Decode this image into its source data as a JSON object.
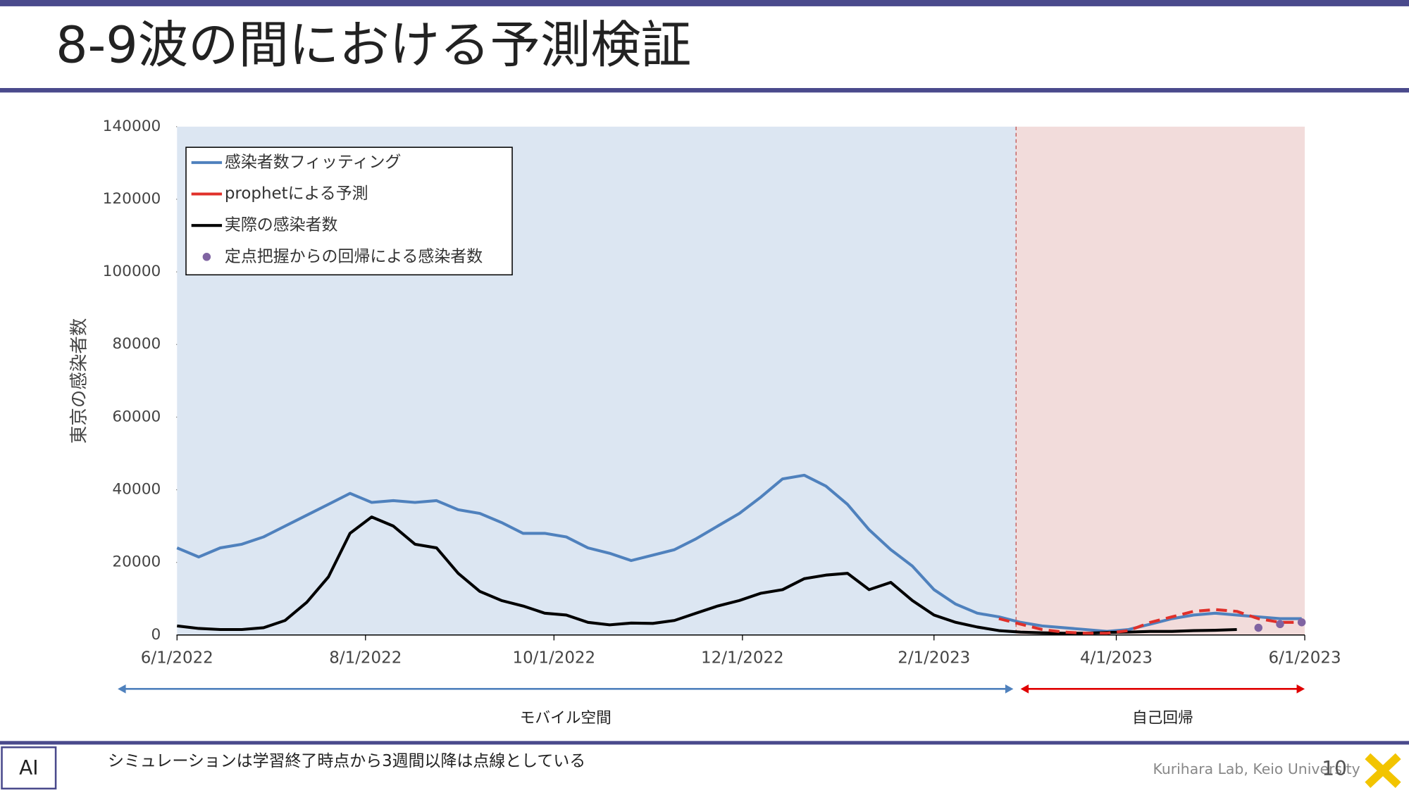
{
  "slide": {
    "title": "8-9波の間における予測検証",
    "note": "シミュレーションは学習終了時点から3週間以降は点線としている",
    "lab": "Kurihara Lab, Keio University",
    "page": "10"
  },
  "chart_data": {
    "type": "line",
    "ylabel": "東京の感染者数",
    "annotations": [
      "モバイル空間",
      "自己回帰"
    ],
    "x": [
      "6/1/2022",
      "6/8/2022",
      "6/15/2022",
      "6/22/2022",
      "6/29/2022",
      "7/6/2022",
      "7/13/2022",
      "7/20/2022",
      "7/27/2022",
      "8/3/2022",
      "8/10/2022",
      "8/17/2022",
      "8/24/2022",
      "8/31/2022",
      "9/7/2022",
      "9/14/2022",
      "9/21/2022",
      "9/28/2022",
      "10/5/2022",
      "10/12/2022",
      "10/19/2022",
      "10/26/2022",
      "11/2/2022",
      "11/9/2022",
      "11/16/2022",
      "11/23/2022",
      "11/30/2022",
      "12/7/2022",
      "12/14/2022",
      "12/21/2022",
      "12/28/2022",
      "1/4/2023",
      "1/11/2023",
      "1/18/2023",
      "1/25/2023",
      "2/1/2023",
      "2/8/2023",
      "2/15/2023",
      "2/22/2023",
      "3/1/2023",
      "3/8/2023",
      "3/15/2023",
      "3/22/2023",
      "3/29/2023",
      "4/5/2023",
      "4/12/2023",
      "4/19/2023",
      "4/26/2023",
      "5/3/2023",
      "5/10/2023",
      "5/17/2023",
      "5/24/2023",
      "5/31/2023"
    ],
    "series": [
      {
        "name": "感染者数フィッティング",
        "color": "#4f81bd",
        "values": [
          24000,
          21500,
          24000,
          25000,
          27000,
          30000,
          33000,
          36000,
          39000,
          36500,
          37000,
          36500,
          37000,
          34500,
          33500,
          31000,
          28000,
          28000,
          27000,
          24000,
          22500,
          20500,
          22000,
          23500,
          26500,
          30000,
          33500,
          38000,
          43000,
          44000,
          41000,
          36000,
          29000,
          23500,
          19000,
          12500,
          8500,
          6000,
          5000,
          3500,
          2500,
          2000,
          1500,
          1000,
          1500,
          3000,
          4500,
          5500,
          6000,
          5500,
          5000,
          4500,
          4500
        ]
      },
      {
        "name": "prophetによる予測",
        "color": "#e0302a",
        "dashed": true,
        "values": [
          null,
          null,
          null,
          null,
          null,
          null,
          null,
          null,
          null,
          null,
          null,
          null,
          null,
          null,
          null,
          null,
          null,
          null,
          null,
          null,
          null,
          null,
          null,
          null,
          null,
          null,
          null,
          null,
          null,
          null,
          null,
          null,
          null,
          null,
          null,
          null,
          null,
          null,
          4500,
          3000,
          1500,
          800,
          500,
          500,
          1200,
          3500,
          5000,
          6500,
          7000,
          6500,
          4500,
          3500,
          3500
        ]
      },
      {
        "name": "実際の感染者数",
        "color": "#000000",
        "values": [
          2500,
          1800,
          1500,
          1500,
          2000,
          4000,
          9000,
          16000,
          28000,
          32500,
          30000,
          25000,
          24000,
          17000,
          12000,
          9500,
          8000,
          6000,
          5500,
          3500,
          2800,
          3300,
          3200,
          4000,
          6000,
          8000,
          9500,
          11500,
          12500,
          15500,
          16500,
          17000,
          12500,
          14500,
          9500,
          5500,
          3500,
          2200,
          1200,
          800,
          600,
          500,
          500,
          700,
          800,
          1000,
          1000,
          1200,
          1300,
          1500,
          null,
          null,
          null
        ]
      },
      {
        "name": "定点把握からの回帰による感染者数",
        "color": "#8064a2",
        "type": "scatter",
        "values": [
          null,
          null,
          null,
          null,
          null,
          null,
          null,
          null,
          null,
          null,
          null,
          null,
          null,
          null,
          null,
          null,
          null,
          null,
          null,
          null,
          null,
          null,
          null,
          null,
          null,
          null,
          null,
          null,
          null,
          null,
          null,
          null,
          null,
          null,
          null,
          null,
          null,
          null,
          null,
          null,
          null,
          null,
          null,
          null,
          null,
          null,
          null,
          null,
          null,
          null,
          2000,
          3000,
          3500
        ]
      }
    ],
    "xlim": [
      "6/1/2022",
      "6/1/2023"
    ],
    "xticks": [
      "6/1/2022",
      "8/1/2022",
      "10/1/2022",
      "12/1/2022",
      "2/1/2023",
      "4/1/2023",
      "6/1/2023"
    ],
    "ylim": [
      0,
      140000
    ],
    "yticks": [
      0,
      20000,
      40000,
      60000,
      80000,
      100000,
      120000,
      140000
    ],
    "legend": "upper left"
  }
}
